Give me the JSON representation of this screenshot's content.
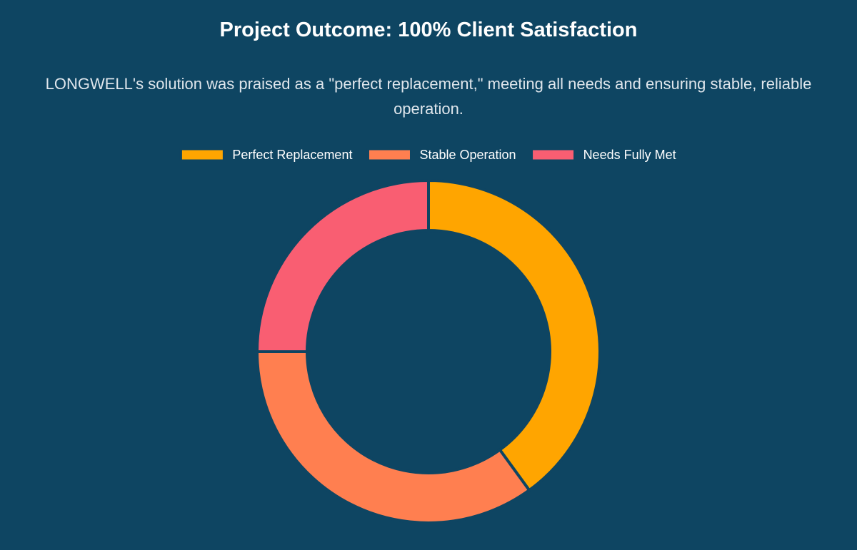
{
  "chart_data": {
    "type": "doughnut",
    "title": "Project Outcome: 100% Client Satisfaction",
    "subtitle": "LONGWELL's solution was praised as a \"perfect replacement,\" meeting all needs and ensuring stable, reliable operation.",
    "categories": [
      "Perfect Replacement",
      "Stable Operation",
      "Needs Fully Met"
    ],
    "values": [
      40,
      35,
      25
    ],
    "colors": [
      "#FFA500",
      "#FF7F50",
      "#F95E72"
    ],
    "legend": "top"
  }
}
